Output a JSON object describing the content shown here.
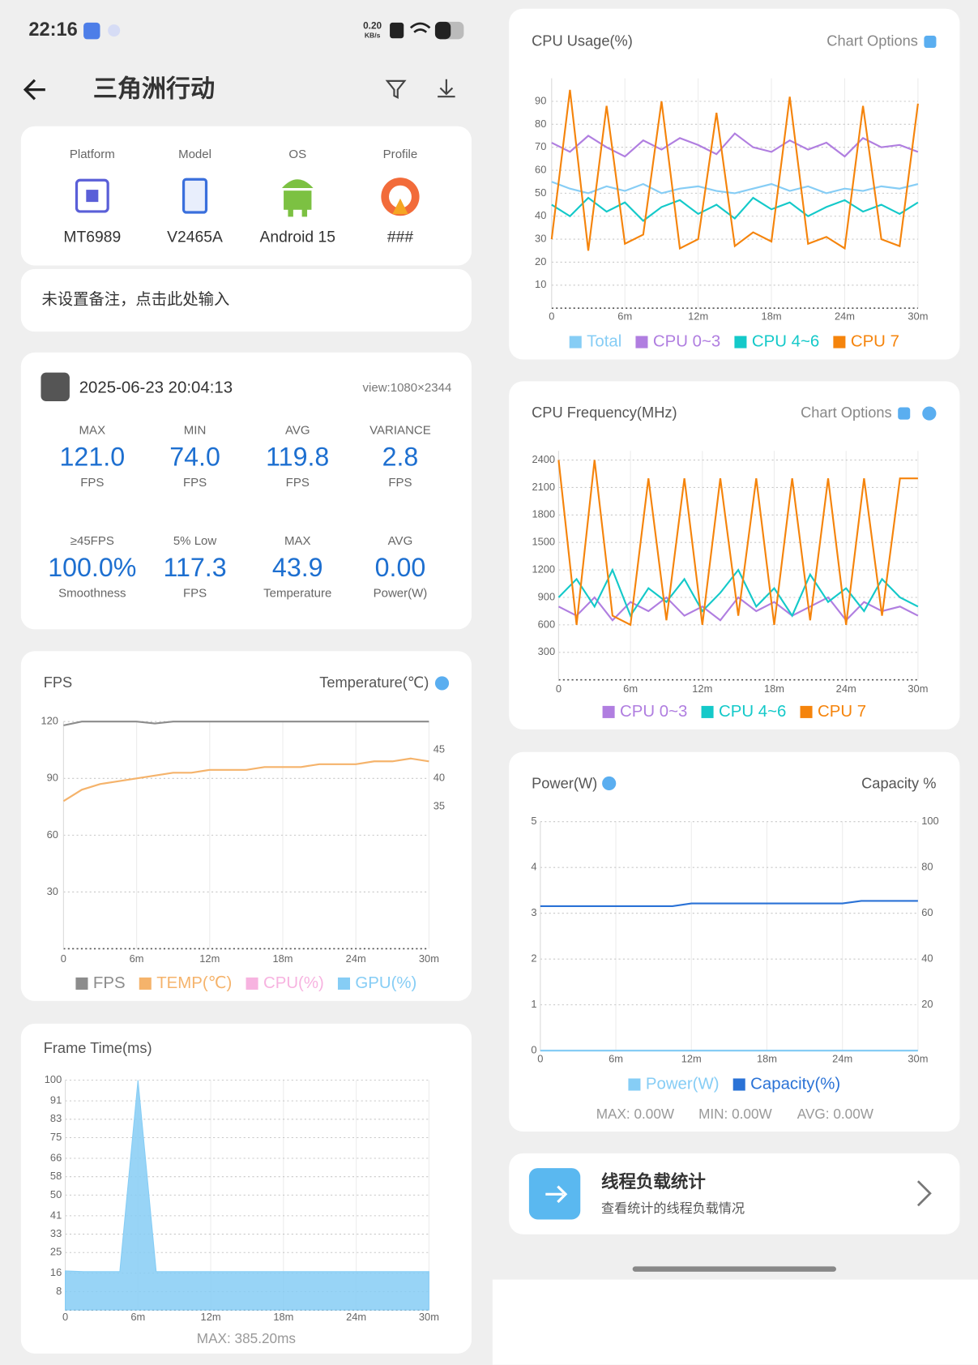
{
  "status": {
    "time": "22:16",
    "speed": "0.20",
    "speed_unit": "KB/s"
  },
  "header": {
    "title": "三角洲行动"
  },
  "device": [
    {
      "label": "Platform",
      "value": "MT6989"
    },
    {
      "label": "Model",
      "value": "V2465A"
    },
    {
      "label": "OS",
      "value": "Android 15"
    },
    {
      "label": "Profile",
      "value": "###"
    }
  ],
  "note": "未设置备注，点击此处输入",
  "session": {
    "date": "2025-06-23 20:04:13",
    "view": "view:1080×2344",
    "stats": [
      {
        "label": "MAX",
        "value": "121.0",
        "unit": "FPS"
      },
      {
        "label": "MIN",
        "value": "74.0",
        "unit": "FPS"
      },
      {
        "label": "AVG",
        "value": "119.8",
        "unit": "FPS"
      },
      {
        "label": "VARIANCE",
        "value": "2.8",
        "unit": "FPS"
      },
      {
        "label": "≥45FPS",
        "value": "100.0%",
        "unit": "Smoothness"
      },
      {
        "label": "5% Low",
        "value": "117.3",
        "unit": "FPS"
      },
      {
        "label": "MAX",
        "value": "43.9",
        "unit": "Temperature"
      },
      {
        "label": "AVG",
        "value": "0.00",
        "unit": "Power(W)"
      }
    ]
  },
  "charts": {
    "fps": {
      "type": "line",
      "title": "FPS",
      "y2_title": "Temperature(℃)",
      "x": [
        0,
        1.5,
        3,
        4.5,
        6,
        7.5,
        9,
        10.5,
        12,
        13.5,
        15,
        16.5,
        18,
        19.5,
        21,
        22.5,
        24,
        25.5,
        27,
        28.5,
        30
      ],
      "xlim": [
        0,
        30
      ],
      "xticks": [
        0,
        {
          "value": 6,
          "label": "6m"
        },
        {
          "value": 12,
          "label": "12m"
        },
        {
          "value": 18,
          "label": "18m"
        },
        {
          "value": 24,
          "label": "24m"
        },
        {
          "value": 30,
          "label": "30m"
        }
      ],
      "ylim": [
        0,
        120
      ],
      "yticks": [
        30,
        60,
        90,
        120
      ],
      "y2lim": [
        10,
        50
      ],
      "y2ticks": [
        35,
        40,
        45
      ],
      "series": [
        {
          "name": "FPS",
          "color": "#8c8c8c",
          "values": [
            118,
            120,
            120,
            120,
            120,
            119,
            120,
            120,
            120,
            120,
            120,
            120,
            120,
            120,
            120,
            120,
            120,
            120,
            120,
            120,
            120
          ]
        },
        {
          "name": "TEMP(℃)",
          "color": "#f5b36b",
          "axis": "y2",
          "values": [
            36,
            38,
            39,
            39.5,
            40,
            40.5,
            41,
            41,
            41.5,
            41.5,
            41.5,
            42,
            42,
            42,
            42.5,
            42.5,
            42.5,
            43,
            43,
            43.5,
            43
          ]
        }
      ],
      "legend": [
        {
          "name": "FPS",
          "color": "#8c8c8c"
        },
        {
          "name": "TEMP(℃)",
          "color": "#f5b36b"
        },
        {
          "name": "CPU(%)",
          "color": "#f7b3e0"
        },
        {
          "name": "GPU(%)",
          "color": "#86cdf5"
        }
      ]
    },
    "frame_time": {
      "type": "area",
      "title": "Frame Time(ms)",
      "footer": "MAX: 385.20ms",
      "x": [
        0,
        1.5,
        3,
        4.5,
        6,
        7.5,
        9,
        10.5,
        12,
        13.5,
        15,
        16.5,
        18,
        19.5,
        21,
        22.5,
        24,
        25.5,
        27,
        28.5,
        30
      ],
      "xlim": [
        0,
        30
      ],
      "xticks": [
        0,
        {
          "value": 6,
          "label": "6m"
        },
        {
          "value": 12,
          "label": "12m"
        },
        {
          "value": 18,
          "label": "18m"
        },
        {
          "value": 24,
          "label": "24m"
        },
        {
          "value": 30,
          "label": "30m"
        }
      ],
      "ylim": [
        0,
        100
      ],
      "yticks": [
        8,
        16,
        25,
        33,
        41,
        50,
        58,
        66,
        75,
        83,
        91,
        100
      ],
      "series": [
        {
          "name": "Frame Time",
          "color": "#86cdf5",
          "values": [
            17,
            16.7,
            16.7,
            16.7,
            100,
            16.7,
            16.7,
            16.7,
            16.7,
            16.7,
            16.7,
            16.7,
            16.7,
            16.7,
            16.7,
            16.7,
            16.7,
            16.7,
            16.7,
            16.7,
            16.7
          ]
        }
      ]
    },
    "cpu_usage": {
      "type": "line",
      "title": "CPU Usage(%)",
      "options": "Chart Options",
      "x": [
        0,
        1.5,
        3,
        4.5,
        6,
        7.5,
        9,
        10.5,
        12,
        13.5,
        15,
        16.5,
        18,
        19.5,
        21,
        22.5,
        24,
        25.5,
        27,
        28.5,
        30
      ],
      "xlim": [
        0,
        30
      ],
      "xticks": [
        0,
        {
          "value": 6,
          "label": "6m"
        },
        {
          "value": 12,
          "label": "12m"
        },
        {
          "value": 18,
          "label": "18m"
        },
        {
          "value": 24,
          "label": "24m"
        },
        {
          "value": 30,
          "label": "30m"
        }
      ],
      "ylim": [
        0,
        100
      ],
      "yticks": [
        10,
        20,
        30,
        40,
        50,
        60,
        70,
        80,
        90
      ],
      "series": [
        {
          "name": "Total",
          "color": "#86cdf5",
          "values": [
            55,
            52,
            50,
            53,
            51,
            54,
            50,
            52,
            53,
            51,
            50,
            52,
            54,
            51,
            53,
            50,
            52,
            51,
            53,
            52,
            54
          ]
        },
        {
          "name": "CPU 0~3",
          "color": "#b07ee0",
          "values": [
            72,
            68,
            75,
            70,
            66,
            73,
            69,
            74,
            71,
            67,
            76,
            70,
            68,
            73,
            69,
            72,
            66,
            74,
            70,
            71,
            68
          ]
        },
        {
          "name": "CPU 4~6",
          "color": "#14c9c9",
          "values": [
            45,
            40,
            48,
            42,
            46,
            38,
            44,
            47,
            41,
            45,
            39,
            48,
            43,
            46,
            40,
            44,
            47,
            42,
            45,
            41,
            46
          ]
        },
        {
          "name": "CPU 7",
          "color": "#f5840c",
          "values": [
            30,
            95,
            25,
            88,
            28,
            32,
            90,
            26,
            30,
            85,
            27,
            33,
            29,
            92,
            28,
            31,
            26,
            88,
            30,
            27,
            89
          ]
        }
      ]
    },
    "cpu_freq": {
      "type": "line",
      "title": "CPU Frequency(MHz)",
      "options": "Chart Options",
      "x": [
        0,
        1.5,
        3,
        4.5,
        6,
        7.5,
        9,
        10.5,
        12,
        13.5,
        15,
        16.5,
        18,
        19.5,
        21,
        22.5,
        24,
        25.5,
        27,
        28.5,
        30
      ],
      "xlim": [
        0,
        30
      ],
      "xticks": [
        0,
        {
          "value": 6,
          "label": "6m"
        },
        {
          "value": 12,
          "label": "12m"
        },
        {
          "value": 18,
          "label": "18m"
        },
        {
          "value": 24,
          "label": "24m"
        },
        {
          "value": 30,
          "label": "30m"
        }
      ],
      "ylim": [
        0,
        2500
      ],
      "yticks": [
        300,
        600,
        900,
        1200,
        1500,
        1800,
        2100,
        2400
      ],
      "series": [
        {
          "name": "CPU 0~3",
          "color": "#b07ee0",
          "values": [
            800,
            700,
            900,
            650,
            850,
            750,
            900,
            700,
            800,
            650,
            900,
            750,
            850,
            700,
            800,
            900,
            650,
            850,
            750,
            800,
            700
          ]
        },
        {
          "name": "CPU 4~6",
          "color": "#14c9c9",
          "values": [
            900,
            1100,
            800,
            1200,
            700,
            1000,
            850,
            1100,
            750,
            950,
            1200,
            800,
            1000,
            700,
            1150,
            850,
            1000,
            750,
            1100,
            900,
            800
          ]
        },
        {
          "name": "CPU 7",
          "color": "#f5840c",
          "values": [
            2400,
            600,
            2400,
            700,
            600,
            2200,
            650,
            2200,
            600,
            2200,
            700,
            2200,
            600,
            2200,
            650,
            2200,
            600,
            2200,
            700,
            2200,
            2200
          ]
        }
      ]
    },
    "power": {
      "type": "line",
      "title": "Power(W)",
      "y2_title": "Capacity %",
      "x": [
        0,
        1.5,
        3,
        4.5,
        6,
        7.5,
        9,
        10.5,
        12,
        13.5,
        15,
        16.5,
        18,
        19.5,
        21,
        22.5,
        24,
        25.5,
        27,
        28.5,
        30
      ],
      "xlim": [
        0,
        30
      ],
      "xticks": [
        0,
        {
          "value": 6,
          "label": "6m"
        },
        {
          "value": 12,
          "label": "12m"
        },
        {
          "value": 18,
          "label": "18m"
        },
        {
          "value": 24,
          "label": "24m"
        },
        {
          "value": 30,
          "label": "30m"
        }
      ],
      "ylim": [
        0,
        5
      ],
      "yticks": [
        0,
        1,
        2,
        3,
        4,
        5
      ],
      "y2lim": [
        0,
        100
      ],
      "y2ticks": [
        20,
        40,
        60,
        80,
        100
      ],
      "series": [
        {
          "name": "Power(W)",
          "color": "#86cdf5",
          "values": [
            0,
            0,
            0,
            0,
            0,
            0,
            0,
            0,
            0,
            0,
            0,
            0,
            0,
            0,
            0,
            0,
            0,
            0,
            0,
            0,
            0
          ]
        },
        {
          "name": "Capacity(%)",
          "color": "#2a72d6",
          "axis": "y2",
          "values": [
            63.1,
            63.1,
            63.1,
            63.1,
            63.1,
            63.1,
            63.1,
            63.1,
            64.3,
            64.3,
            64.3,
            64.3,
            64.3,
            64.3,
            64.3,
            64.3,
            64.3,
            65.4,
            65.4,
            65.4,
            65.4
          ]
        }
      ],
      "summary": [
        "MAX: 0.00W",
        "MIN: 0.00W",
        "AVG: 0.00W"
      ]
    }
  },
  "thread": {
    "title": "线程负载统计",
    "subtitle": "查看统计的线程负载情况"
  }
}
